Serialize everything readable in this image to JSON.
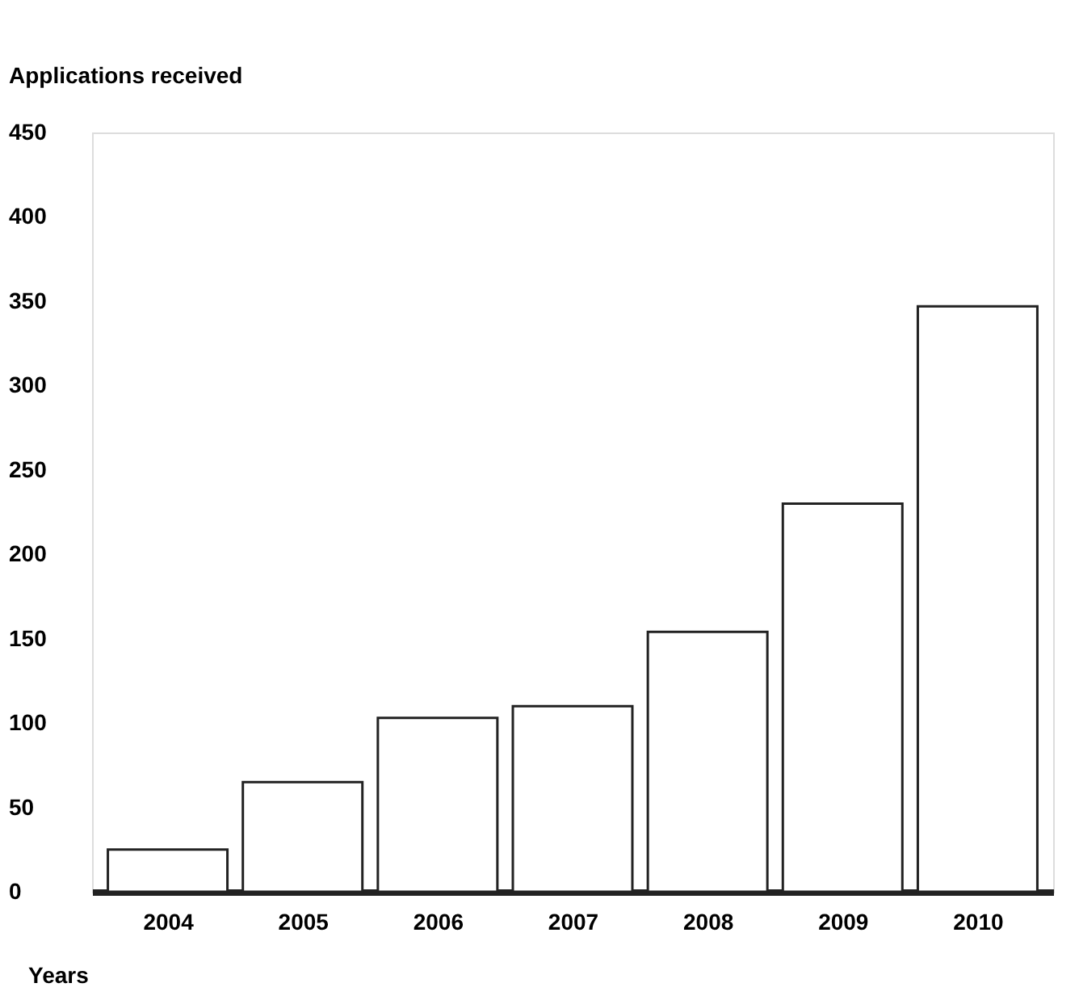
{
  "chart_data": {
    "type": "bar",
    "ylabel": "Applications received",
    "xlabel": "Years",
    "categories": [
      "2004",
      "2005",
      "2006",
      "2007",
      "2008",
      "2009",
      "2010"
    ],
    "values": [
      25,
      65,
      103,
      110,
      154,
      230,
      347
    ],
    "color": "#ffffff",
    "ylim": [
      0,
      450
    ],
    "yticks": [
      0,
      50,
      100,
      150,
      200,
      250,
      300,
      350,
      400,
      450
    ],
    "grid": false
  }
}
